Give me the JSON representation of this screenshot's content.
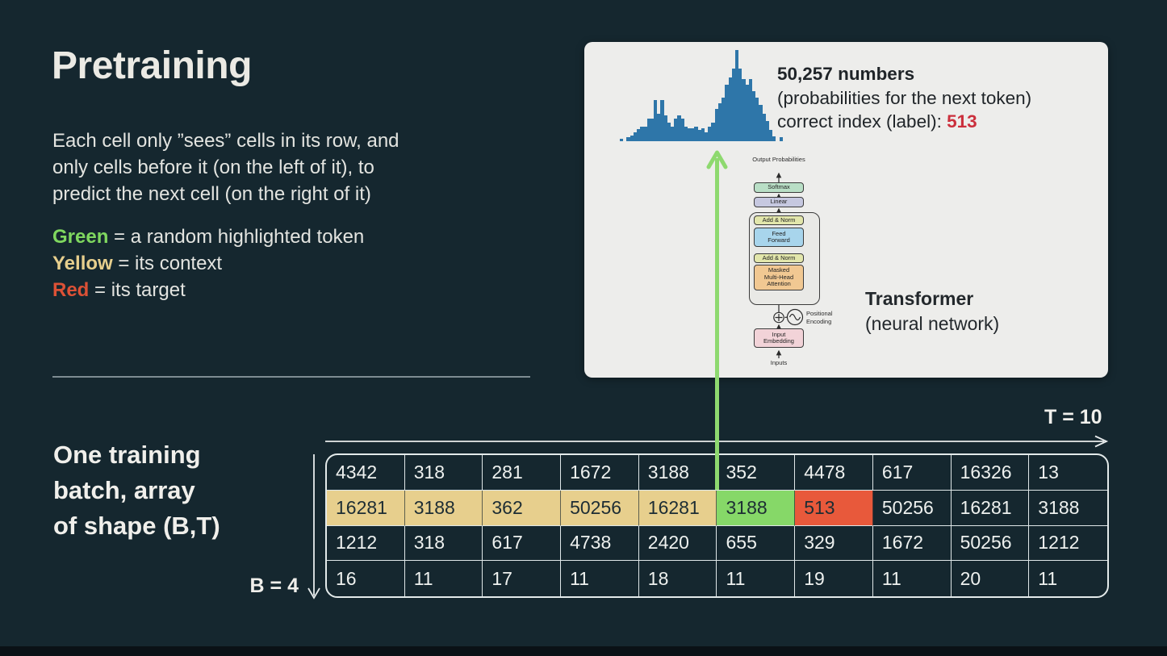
{
  "slide": {
    "title": "Pretraining",
    "paragraph_lines": [
      "Each cell only ”sees” cells in its row, and",
      "only cells before it (on the left of it), to",
      "predict the next cell (on the right of it)"
    ],
    "legend": [
      {
        "term": "Green",
        "color": "#7fd75f",
        "definition": " = a random highlighted token"
      },
      {
        "term": "Yellow",
        "color": "#e7cf8d",
        "definition": " = its context"
      },
      {
        "term": "Red",
        "color": "#dd5136",
        "definition": " = its target"
      }
    ],
    "batch_label_lines": [
      "One training",
      "batch, array",
      "of shape (B,T)"
    ],
    "b_label": "B = 4",
    "t_label": "T = 10"
  },
  "card": {
    "headline": "50,257 numbers",
    "subline": "(probabilities for the next token)",
    "correct_prefix": "correct index (label): ",
    "correct_value": "513",
    "transformer_title": "Transformer",
    "transformer_subtitle": "(neural network)"
  },
  "diagram": {
    "output_label": "Output Probabilities",
    "softmax": "Softmax",
    "linear": "Linear",
    "add_norm_top": "Add & Norm",
    "feed_forward": "Feed Forward",
    "add_norm_bottom": "Add & Norm",
    "masked_mha": "Masked Multi-Head Attention",
    "positional_encoding": "Positional Encoding",
    "input_embedding": "Input Embedding",
    "inputs": "Inputs",
    "colors": {
      "softmax": "#b9dfc6",
      "linear": "#c6c8e0",
      "add_norm": "#e2e6ab",
      "feed_forward": "#a8d5ec",
      "masked_mha": "#f1c892",
      "input_embedding": "#f2d3d8"
    }
  },
  "chart_data": {
    "type": "bar",
    "title": "",
    "xlabel": "",
    "ylabel": "",
    "grid": false,
    "axes_visible": false,
    "bar_color": "#2e76a9",
    "ylim": [
      0,
      100
    ],
    "values": [
      3,
      0,
      4,
      6,
      10,
      13,
      16,
      16,
      25,
      25,
      45,
      30,
      45,
      28,
      20,
      16,
      25,
      28,
      25,
      16,
      14,
      14,
      16,
      12,
      14,
      10,
      16,
      20,
      35,
      42,
      48,
      62,
      70,
      80,
      100,
      80,
      68,
      62,
      68,
      55,
      48,
      40,
      30,
      22,
      12,
      5,
      0,
      4
    ]
  },
  "table": {
    "shape_b": 4,
    "shape_t": 10,
    "highlight_colors": {
      "context": "#e7cf8d",
      "token": "#86d868",
      "target": "#e8593b"
    },
    "rows": [
      [
        {
          "v": "4342"
        },
        {
          "v": "318"
        },
        {
          "v": "281"
        },
        {
          "v": "1672"
        },
        {
          "v": "3188"
        },
        {
          "v": "352"
        },
        {
          "v": "4478"
        },
        {
          "v": "617"
        },
        {
          "v": "16326"
        },
        {
          "v": "13"
        }
      ],
      [
        {
          "v": "16281",
          "c": "context"
        },
        {
          "v": "3188",
          "c": "context"
        },
        {
          "v": "362",
          "c": "context"
        },
        {
          "v": "50256",
          "c": "context"
        },
        {
          "v": "16281",
          "c": "context"
        },
        {
          "v": "3188",
          "c": "token"
        },
        {
          "v": "513",
          "c": "target"
        },
        {
          "v": "50256"
        },
        {
          "v": "16281"
        },
        {
          "v": "3188"
        }
      ],
      [
        {
          "v": "1212"
        },
        {
          "v": "318"
        },
        {
          "v": "617"
        },
        {
          "v": "4738"
        },
        {
          "v": "2420"
        },
        {
          "v": "655"
        },
        {
          "v": "329"
        },
        {
          "v": "1672"
        },
        {
          "v": "50256"
        },
        {
          "v": "1212"
        }
      ],
      [
        {
          "v": "16"
        },
        {
          "v": "11"
        },
        {
          "v": "17"
        },
        {
          "v": "11"
        },
        {
          "v": "18"
        },
        {
          "v": "11"
        },
        {
          "v": "19"
        },
        {
          "v": "11"
        },
        {
          "v": "20"
        },
        {
          "v": "11"
        }
      ]
    ]
  },
  "colors": {
    "background": "#15272f",
    "label_red": "#cb2f3c",
    "green_arrow": "#8ed96f",
    "axis_white": "#e8eced"
  }
}
